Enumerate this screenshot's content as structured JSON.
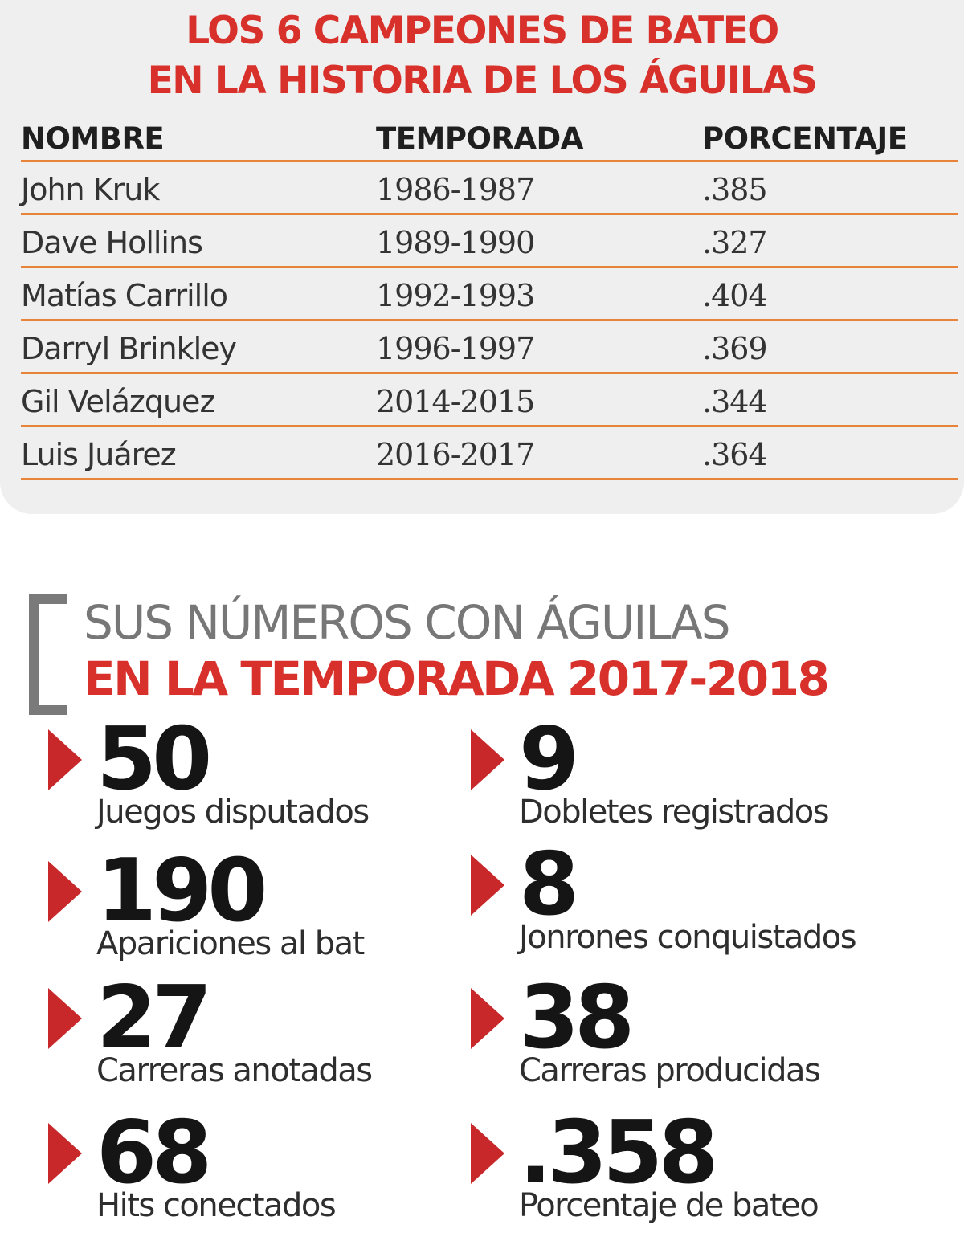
{
  "table": {
    "title_line1": "LOS 6 CAMPEONES DE BATEO",
    "title_line2": "EN LA HISTORIA DE LOS ÁGUILAS",
    "headers": {
      "name": "NOMBRE",
      "season": "TEMPORADA",
      "pct": "PORCENTAJE"
    },
    "rows": [
      {
        "name": "John Kruk",
        "season": "1986-1987",
        "pct": ".385"
      },
      {
        "name": "Dave Hollins",
        "season": "1989-1990",
        "pct": ".327"
      },
      {
        "name": "Matías Carrillo",
        "season": "1992-1993",
        "pct": ".404"
      },
      {
        "name": "Darryl Brinkley",
        "season": "1996-1997",
        "pct": ".369"
      },
      {
        "name": "Gil Velázquez",
        "season": "2014-2015",
        "pct": ".344"
      },
      {
        "name": "Luis Juárez",
        "season": "2016-2017",
        "pct": ".364"
      }
    ]
  },
  "stats_section": {
    "title_line1": "SUS NÚMEROS CON ÁGUILAS",
    "title_line2": "EN LA TEMPORADA 2017-2018",
    "stats": [
      {
        "value": "50",
        "label": "Juegos disputados"
      },
      {
        "value": "9",
        "label": "Dobletes registrados"
      },
      {
        "value": "190",
        "label": "Apariciones al bat"
      },
      {
        "value": "8",
        "label": "Jonrones conquistados"
      },
      {
        "value": "27",
        "label": "Carreras anotadas"
      },
      {
        "value": "38",
        "label": "Carreras producidas"
      },
      {
        "value": "68",
        "label": "Hits conectados"
      },
      {
        "value": ".358",
        "label": "Porcentaje de bateo"
      }
    ]
  },
  "colors": {
    "title_red": "#d8302a",
    "row_divider_orange": "#e7843a",
    "panel_gray": "#efefef",
    "marker_red": "#c9282a",
    "bracket_gray": "#7a7a7a"
  }
}
